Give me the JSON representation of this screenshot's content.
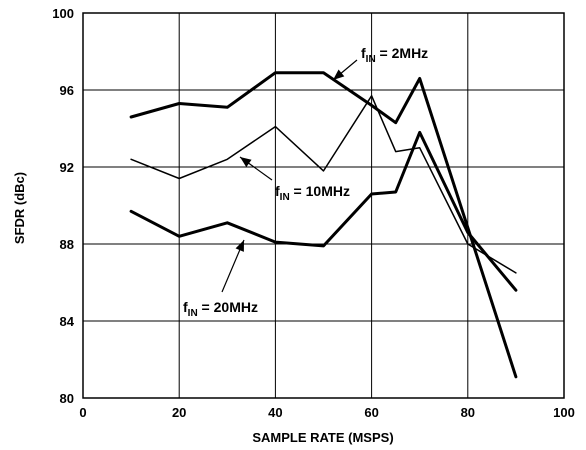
{
  "chart_data": {
    "type": "line",
    "title": "",
    "xlabel": "SAMPLE RATE (MSPS)",
    "ylabel": "SFDR (dBc)",
    "xlim": [
      0,
      100
    ],
    "ylim": [
      80,
      100
    ],
    "xticks": [
      0,
      20,
      40,
      60,
      80,
      100
    ],
    "yticks": [
      80,
      84,
      88,
      92,
      96,
      100
    ],
    "grid": true,
    "legend": "inline labels with arrows",
    "series": [
      {
        "name": "fIN = 2MHz",
        "label_main": "f",
        "label_sub": "IN",
        "label_rest": " = 2MHz",
        "x": [
          10,
          20,
          30,
          40,
          50,
          60,
          65,
          70,
          90
        ],
        "y": [
          94.6,
          95.3,
          95.1,
          96.9,
          96.9,
          95.2,
          94.3,
          96.6,
          81.1
        ]
      },
      {
        "name": "fIN = 10MHz",
        "label_main": "f",
        "label_sub": "IN",
        "label_rest": " = 10MHz",
        "x": [
          10,
          20,
          30,
          40,
          50,
          60,
          65,
          70,
          80,
          90
        ],
        "y": [
          92.4,
          91.4,
          92.4,
          94.1,
          91.8,
          95.7,
          92.8,
          93.0,
          88.0,
          86.5
        ]
      },
      {
        "name": "fIN = 20MHz",
        "label_main": "f",
        "label_sub": "IN",
        "label_rest": " = 20MHz",
        "x": [
          10,
          20,
          30,
          40,
          50,
          60,
          65,
          70,
          80,
          90
        ],
        "y": [
          89.7,
          88.4,
          89.1,
          88.1,
          87.9,
          90.6,
          90.7,
          93.8,
          88.6,
          85.6
        ]
      }
    ]
  }
}
